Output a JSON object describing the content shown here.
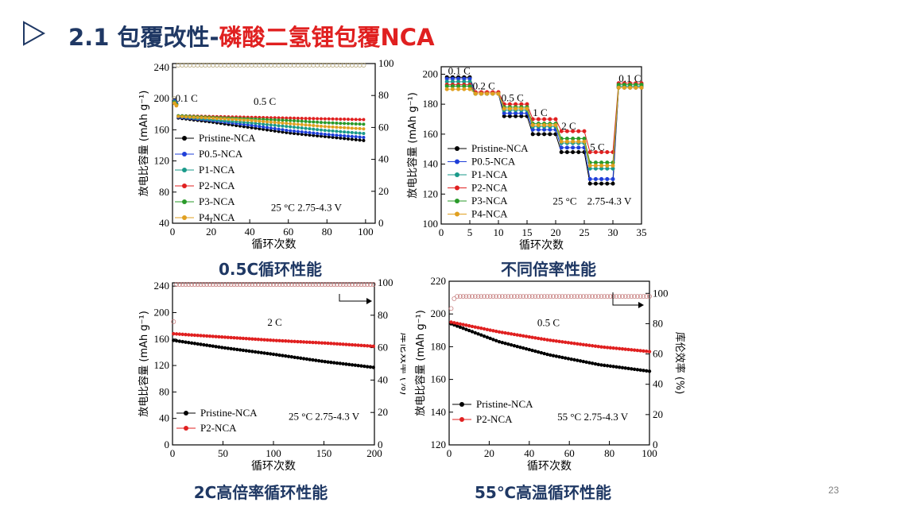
{
  "slide": {
    "title_prefix": "2.1 包覆改性-",
    "title_highlight": "磷酸二氢锂包覆NCA",
    "page_number": "23",
    "colors": {
      "navy": "#1f3864",
      "red": "#e02020"
    }
  },
  "captions": [
    "0.5C循环性能",
    "不同倍率性能",
    "2C高倍率循环性能",
    "55℃高温循环性能"
  ],
  "chart_data": [
    {
      "type": "scatter",
      "xlabel": "循环次数",
      "ylabel": "放电比容量 (mAh g⁻¹)",
      "xlim": [
        0,
        105
      ],
      "ylim": [
        40,
        245
      ],
      "xticks": [
        0,
        20,
        40,
        60,
        80,
        100
      ],
      "yticks": [
        40,
        80,
        120,
        160,
        200,
        240
      ],
      "y2lim": [
        0,
        100
      ],
      "y2ticks": [
        0,
        20,
        40,
        60,
        80,
        100
      ],
      "annotations": [
        "0.1 C",
        "0.5 C",
        "25 °C  2.75-4.3 V"
      ],
      "legend_position": "left",
      "series": [
        {
          "name": "Pristine-NCA",
          "color": "#000000",
          "x": [
            1,
            2,
            3,
            20,
            40,
            60,
            80,
            100
          ],
          "y": [
            196,
            193,
            175,
            170,
            163,
            156,
            151,
            146
          ]
        },
        {
          "name": "P0.5-NCA",
          "color": "#1f3fd8",
          "x": [
            1,
            2,
            3,
            20,
            40,
            60,
            80,
            100
          ],
          "y": [
            197,
            194,
            176,
            172,
            166,
            159,
            154,
            150
          ]
        },
        {
          "name": "P1-NCA",
          "color": "#1a9a8a",
          "x": [
            1,
            2,
            3,
            20,
            40,
            60,
            80,
            100
          ],
          "y": [
            196,
            193,
            177,
            173,
            169,
            164,
            159,
            155
          ]
        },
        {
          "name": "P2-NCA",
          "color": "#e02020",
          "x": [
            1,
            2,
            3,
            20,
            40,
            60,
            80,
            100
          ],
          "y": [
            195,
            192,
            178,
            177,
            176,
            175,
            174,
            173
          ]
        },
        {
          "name": "P3-NCA",
          "color": "#2a9a2a",
          "x": [
            1,
            2,
            3,
            20,
            40,
            60,
            80,
            100
          ],
          "y": [
            195,
            192,
            178,
            176,
            174,
            172,
            169,
            167
          ]
        },
        {
          "name": "P4-NCA",
          "color": "#e0a020",
          "x": [
            1,
            2,
            3,
            20,
            40,
            60,
            80,
            100
          ],
          "y": [
            194,
            191,
            177,
            175,
            172,
            168,
            164,
            161
          ]
        }
      ],
      "efficiency": {
        "x": [
          1,
          2,
          3,
          100
        ],
        "y": [
          78,
          96,
          99,
          99
        ]
      }
    },
    {
      "type": "scatter",
      "xlabel": "循环次数",
      "ylabel": "放电比容量 (mAh g⁻¹)",
      "xlim": [
        0,
        35
      ],
      "ylim": [
        100,
        205
      ],
      "xticks": [
        0,
        5,
        10,
        15,
        20,
        25,
        30,
        35
      ],
      "yticks": [
        100,
        120,
        140,
        160,
        180,
        200
      ],
      "annotations": [
        "0.1 C",
        "0.2 C",
        "0.5 C",
        "1 C",
        "2 C",
        "5 C",
        "0.1 C",
        "25 °C",
        "2.75-4.3 V"
      ],
      "legend_position": "left",
      "segments": [
        {
          "rate": "0.1 C",
          "x": [
            1,
            5
          ]
        },
        {
          "rate": "0.2 C",
          "x": [
            6,
            10
          ]
        },
        {
          "rate": "0.5 C",
          "x": [
            11,
            15
          ]
        },
        {
          "rate": "1 C",
          "x": [
            16,
            20
          ]
        },
        {
          "rate": "2 C",
          "x": [
            21,
            25
          ]
        },
        {
          "rate": "5 C",
          "x": [
            26,
            30
          ]
        },
        {
          "rate": "0.1 C",
          "x": [
            31,
            35
          ]
        }
      ],
      "series": [
        {
          "name": "Pristine-NCA",
          "color": "#000000",
          "values": [
            198,
            187,
            172,
            160,
            148,
            127,
            191
          ]
        },
        {
          "name": "P0.5-NCA",
          "color": "#1f3fd8",
          "values": [
            197,
            187,
            174,
            163,
            151,
            130,
            192
          ]
        },
        {
          "name": "P1-NCA",
          "color": "#1a9a8a",
          "values": [
            195,
            187,
            176,
            165,
            154,
            137,
            192
          ]
        },
        {
          "name": "P2-NCA",
          "color": "#e02020",
          "values": [
            193,
            188,
            180,
            170,
            162,
            148,
            194
          ]
        },
        {
          "name": "P3-NCA",
          "color": "#2a9a2a",
          "values": [
            192,
            187,
            178,
            167,
            157,
            141,
            193
          ]
        },
        {
          "name": "P4-NCA",
          "color": "#e0a020",
          "values": [
            190,
            187,
            177,
            166,
            155,
            139,
            191
          ]
        }
      ]
    },
    {
      "type": "scatter",
      "xlabel": "循环次数",
      "ylabel": "放电比容量 (mAh g⁻¹)",
      "y2label": "库伦效率 (%)",
      "xlim": [
        0,
        200
      ],
      "ylim": [
        0,
        245
      ],
      "xticks": [
        0,
        50,
        100,
        150,
        200
      ],
      "yticks": [
        0,
        40,
        80,
        120,
        160,
        200,
        240
      ],
      "y2lim": [
        0,
        100
      ],
      "y2ticks": [
        0,
        20,
        40,
        60,
        80,
        100
      ],
      "annotations": [
        "2 C",
        "25 °C  2.75-4.3 V"
      ],
      "legend_position": "bottom-left",
      "series": [
        {
          "name": "Pristine-NCA",
          "color": "#000000",
          "x": [
            1,
            50,
            100,
            150,
            200
          ],
          "y": [
            158,
            147,
            137,
            126,
            117
          ]
        },
        {
          "name": "P2-NCA",
          "color": "#e02020",
          "x": [
            1,
            50,
            100,
            150,
            200
          ],
          "y": [
            168,
            163,
            158,
            154,
            149
          ]
        }
      ],
      "efficiency": {
        "x": [
          1,
          2,
          3,
          200
        ],
        "y": [
          76,
          94,
          99,
          99
        ]
      }
    },
    {
      "type": "scatter",
      "xlabel": "循环次数",
      "ylabel": "放电比容量 (mAh g⁻¹)",
      "y2label": "库伦效率 (%)",
      "xlim": [
        0,
        100
      ],
      "ylim": [
        120,
        220
      ],
      "xticks": [
        0,
        20,
        40,
        60,
        80,
        100
      ],
      "yticks": [
        120,
        140,
        160,
        180,
        200,
        220
      ],
      "y2lim": [
        0,
        108
      ],
      "y2ticks": [
        0,
        20,
        40,
        60,
        80,
        100
      ],
      "annotations": [
        "0.5 C",
        "55 °C  2.75-4.3 V"
      ],
      "legend_position": "bottom-left",
      "series": [
        {
          "name": "Pristine-NCA",
          "color": "#000000",
          "x": [
            1,
            25,
            50,
            75,
            100
          ],
          "y": [
            194,
            183,
            175,
            169,
            165
          ]
        },
        {
          "name": "P2-NCA",
          "color": "#e02020",
          "x": [
            1,
            25,
            50,
            75,
            100
          ],
          "y": [
            195,
            189,
            184,
            180,
            177
          ]
        }
      ],
      "efficiency": {
        "x": [
          1,
          2,
          4,
          100
        ],
        "y": [
          90,
          96,
          98,
          98
        ]
      }
    }
  ]
}
